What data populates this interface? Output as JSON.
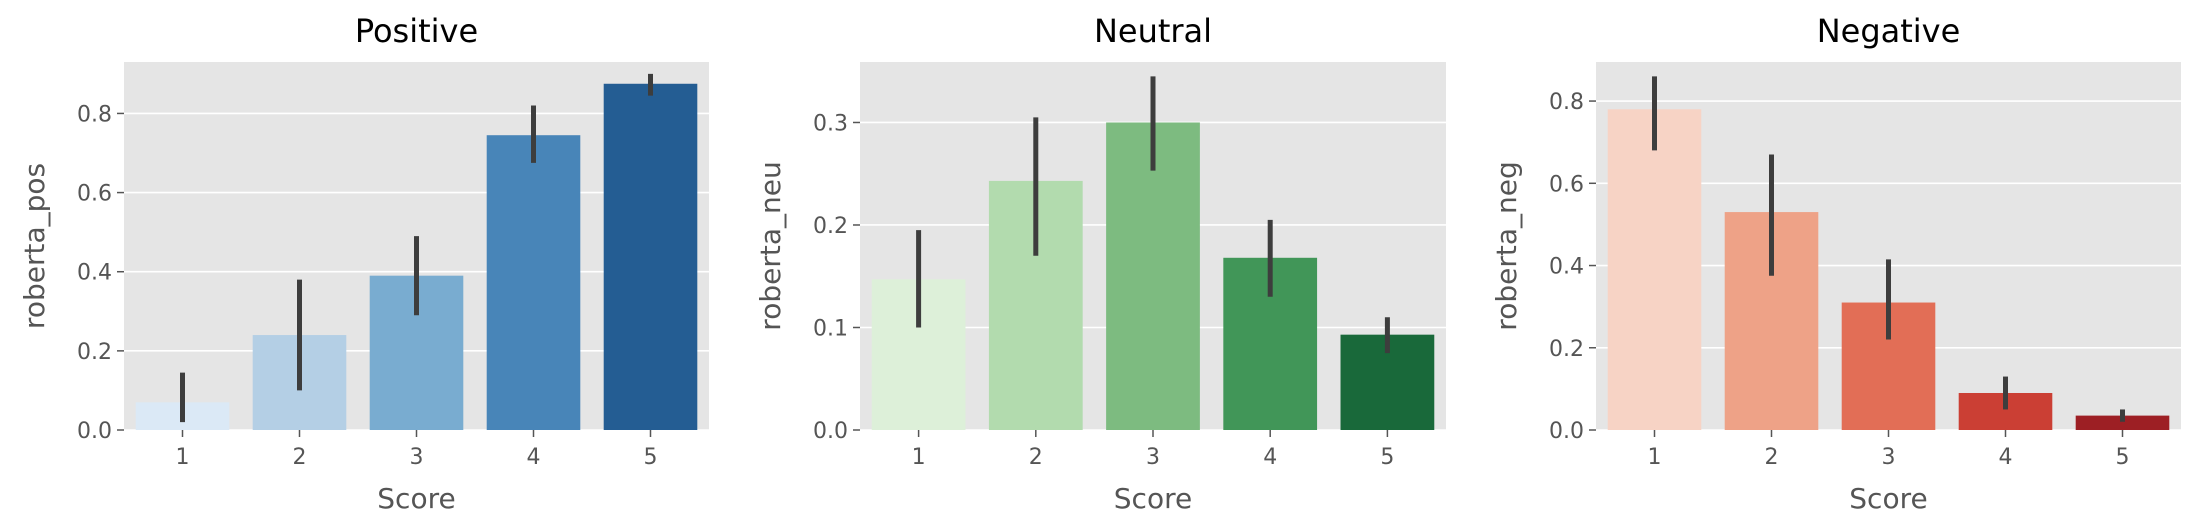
{
  "chart_data": [
    {
      "type": "bar",
      "title": "Positive",
      "xlabel": "Score",
      "ylabel": "roberta_pos",
      "categories": [
        "1",
        "2",
        "3",
        "4",
        "5"
      ],
      "values": [
        0.07,
        0.24,
        0.39,
        0.745,
        0.875
      ],
      "error_low": [
        0.02,
        0.1,
        0.29,
        0.675,
        0.845
      ],
      "error_high": [
        0.145,
        0.38,
        0.49,
        0.82,
        0.9
      ],
      "colors": [
        "#dbe9f6",
        "#b4cfe5",
        "#79acd0",
        "#4885b8",
        "#245d93"
      ],
      "ylim": [
        0,
        0.93
      ],
      "yticks": [
        "0.0",
        "0.2",
        "0.4",
        "0.6",
        "0.8"
      ],
      "grid": true
    },
    {
      "type": "bar",
      "title": "Neutral",
      "xlabel": "Score",
      "ylabel": "roberta_neu",
      "categories": [
        "1",
        "2",
        "3",
        "4",
        "5"
      ],
      "values": [
        0.147,
        0.243,
        0.3,
        0.168,
        0.093
      ],
      "error_low": [
        0.1,
        0.17,
        0.253,
        0.13,
        0.075
      ],
      "error_high": [
        0.195,
        0.305,
        0.345,
        0.205,
        0.11
      ],
      "colors": [
        "#ddf0d9",
        "#b2dbae",
        "#7dbb80",
        "#419658",
        "#19693a"
      ],
      "ylim": [
        0,
        0.359
      ],
      "yticks": [
        "0.0",
        "0.1",
        "0.2",
        "0.3"
      ],
      "grid": true
    },
    {
      "type": "bar",
      "title": "Negative",
      "xlabel": "Score",
      "ylabel": "roberta_neg",
      "categories": [
        "1",
        "2",
        "3",
        "4",
        "5"
      ],
      "values": [
        0.78,
        0.53,
        0.31,
        0.09,
        0.035
      ],
      "error_low": [
        0.68,
        0.375,
        0.22,
        0.05,
        0.02
      ],
      "error_high": [
        0.86,
        0.67,
        0.415,
        0.13,
        0.05
      ],
      "colors": [
        "#f7d3c5",
        "#eea287",
        "#e26e56",
        "#cb3f34",
        "#9d1f24"
      ],
      "ylim": [
        0,
        0.895
      ],
      "yticks": [
        "0.0",
        "0.2",
        "0.4",
        "0.6",
        "0.8"
      ],
      "grid": true
    }
  ]
}
